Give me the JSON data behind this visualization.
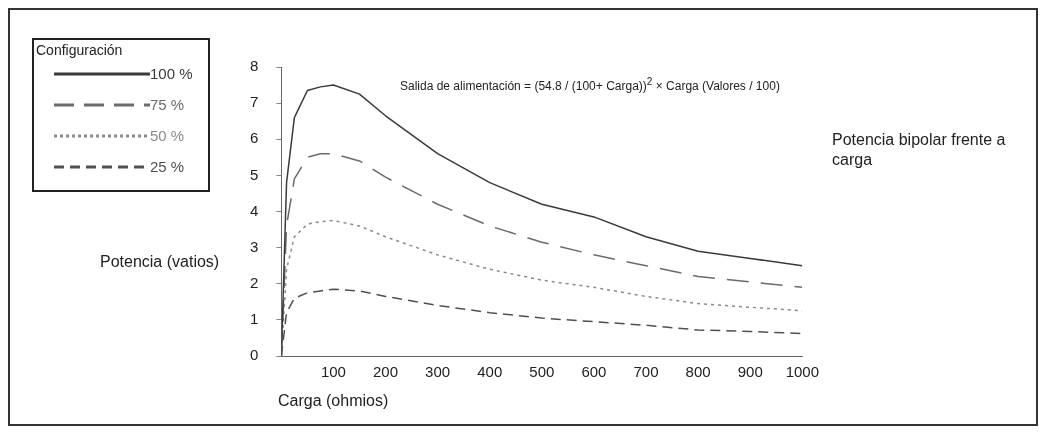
{
  "chart_data": {
    "type": "line",
    "title": "Potencia bipolar frente a carga",
    "xlabel": "Carga (ohmios)",
    "ylabel": "Potencia (vatios)",
    "legend_title": "Configuración",
    "annotations": [
      "Salida de alimentación = (54.8 / (100+ Carga))$^{2}$ × Carga (Valores / 100)"
    ],
    "x": [
      0,
      10,
      25,
      50,
      75,
      100,
      150,
      200,
      300,
      400,
      500,
      600,
      700,
      800,
      900,
      1000
    ],
    "series": [
      {
        "name": "100 %",
        "color": "#3a3a3a",
        "line_style": "solid",
        "values": [
          0,
          4.8,
          6.6,
          7.35,
          7.45,
          7.5,
          7.25,
          6.65,
          5.6,
          4.8,
          4.2,
          3.85,
          3.3,
          2.9,
          2.7,
          2.5
        ]
      },
      {
        "name": "75 %",
        "color": "#6a6a6a",
        "line_style": "dashed",
        "values": [
          0,
          3.6,
          4.9,
          5.5,
          5.6,
          5.6,
          5.4,
          4.95,
          4.2,
          3.6,
          3.15,
          2.8,
          2.5,
          2.2,
          2.05,
          1.9
        ]
      },
      {
        "name": "50 %",
        "color": "#8a8a8a",
        "line_style": "dotted",
        "values": [
          0,
          2.4,
          3.3,
          3.65,
          3.72,
          3.75,
          3.6,
          3.3,
          2.8,
          2.4,
          2.1,
          1.9,
          1.65,
          1.45,
          1.35,
          1.25
        ]
      },
      {
        "name": "25 %",
        "color": "#505050",
        "line_style": "dashed",
        "values": [
          0,
          1.2,
          1.6,
          1.75,
          1.8,
          1.85,
          1.8,
          1.65,
          1.4,
          1.2,
          1.05,
          0.95,
          0.85,
          0.72,
          0.68,
          0.62
        ]
      }
    ],
    "xlim": [
      0,
      1000
    ],
    "xticks": [
      100,
      200,
      300,
      400,
      500,
      600,
      700,
      800,
      900,
      1000
    ],
    "ylim": [
      0,
      8
    ],
    "yticks": [
      0,
      1,
      2,
      3,
      4,
      5,
      6,
      7,
      8
    ],
    "grid": false,
    "legend": "left",
    "marker": "none"
  }
}
